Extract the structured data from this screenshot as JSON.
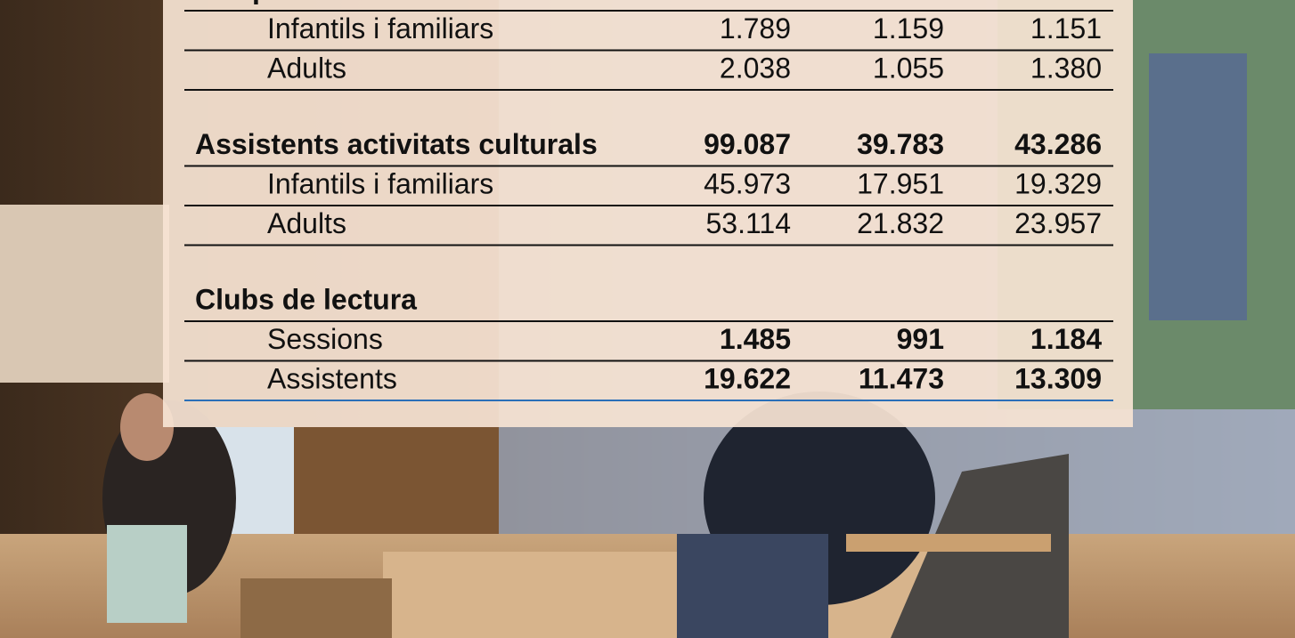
{
  "table": {
    "sections": [
      {
        "title": "i de promoció lectura",
        "values": null,
        "rows": [
          {
            "label": "Infantils i familiars",
            "values": [
              "1.789",
              "1.159",
              "1.151"
            ]
          },
          {
            "label": "Adults",
            "values": [
              "2.038",
              "1.055",
              "1.380"
            ]
          }
        ]
      },
      {
        "title": "Assistents activitats culturals",
        "values": [
          "99.087",
          "39.783",
          "43.286"
        ],
        "rows": [
          {
            "label": "Infantils i familiars",
            "values": [
              "45.973",
              "17.951",
              "19.329"
            ]
          },
          {
            "label": "Adults",
            "values": [
              "53.114",
              "21.832",
              "23.957"
            ]
          }
        ]
      },
      {
        "title": "Clubs de lectura",
        "values": null,
        "rows": [
          {
            "label": "Sessions",
            "values": [
              "1.485",
              "991",
              "1.184"
            ]
          },
          {
            "label": "Assistents",
            "values": [
              "19.622",
              "11.473",
              "13.309"
            ]
          }
        ]
      }
    ]
  }
}
